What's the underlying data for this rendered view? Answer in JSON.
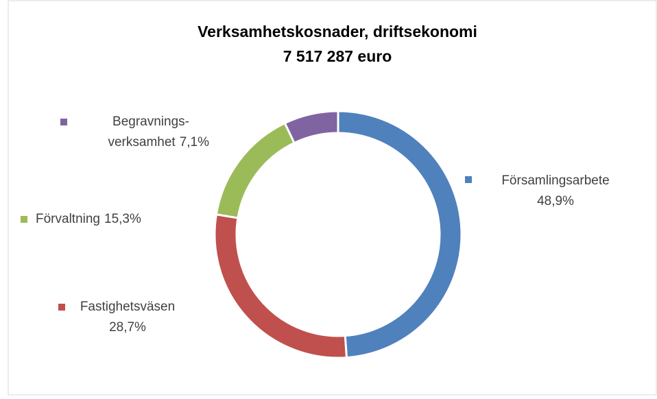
{
  "chart_data": {
    "type": "donut",
    "title": "Verksamhetskosnader, driftsekonomi",
    "subtitle": "7 517 287 euro",
    "categories": [
      "Församlingsarbete",
      "Fastighetsväsen",
      "Förvaltning",
      "Begravnings-\nverksamhet"
    ],
    "values": [
      48.9,
      28.7,
      15.3,
      7.1
    ],
    "value_labels": [
      "48,9%",
      "28,7%",
      "15,3%",
      "7,1%"
    ],
    "colors": [
      "#4f81bd",
      "#c0504d",
      "#9bbb59",
      "#8064a2"
    ]
  }
}
